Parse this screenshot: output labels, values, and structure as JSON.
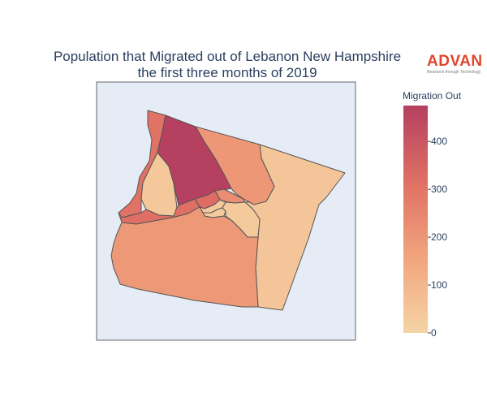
{
  "title_line1": "Population that Migrated out of Lebanon New Hampshire",
  "title_line2": "the first three months of 2019",
  "logo": {
    "word": "ADVAN",
    "tagline": "Research through Technology"
  },
  "colorbar": {
    "title": "Migration Out",
    "ticks": [
      "0",
      "100",
      "200",
      "300",
      "400"
    ],
    "range": [
      0,
      475
    ],
    "colorscale": [
      "#f5d4a5",
      "#f1a57e",
      "#e07065",
      "#b5405f"
    ]
  },
  "map": {
    "background": "#e5ecf6",
    "border_color": "#5a5a5a",
    "regions": [
      {
        "id": "northwest-strip",
        "value": 310
      },
      {
        "id": "north-central",
        "value": 475
      },
      {
        "id": "northeast",
        "value": 200
      },
      {
        "id": "far-east",
        "value": 50
      },
      {
        "id": "west-pocket",
        "value": 40
      },
      {
        "id": "west-band",
        "value": 320
      },
      {
        "id": "center-small",
        "value": 330
      },
      {
        "id": "center-sliver",
        "value": 230
      },
      {
        "id": "center-a",
        "value": 40
      },
      {
        "id": "center-b",
        "value": 30
      },
      {
        "id": "center-c",
        "value": 35
      },
      {
        "id": "southeast",
        "value": 40
      },
      {
        "id": "south",
        "value": 195
      }
    ]
  }
}
